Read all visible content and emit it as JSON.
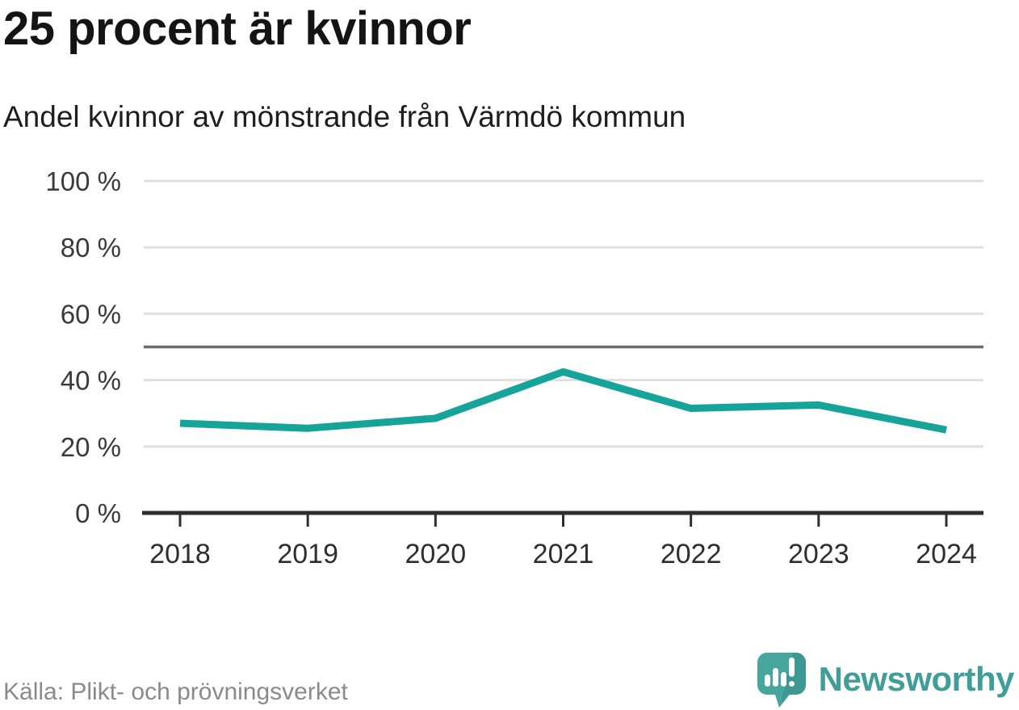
{
  "header": {
    "title": "25 procent är kvinnor",
    "subtitle": "Andel kvinnor av mönstrande från Värmdö kommun"
  },
  "footer": {
    "source": "Källa: Plikt- och prövningsverket",
    "brand": "Newsworthy",
    "logo_icon": "newsworthy-speech-bubble-bar-chart-icon"
  },
  "colors": {
    "line": "#16a399",
    "grid": "#dfdfdf",
    "axis": "#2e2e2e",
    "reference": "#6a6a72",
    "title_text": "#141414",
    "muted_text": "#8a8a8a",
    "brand": "#3f9e97",
    "brand_shade": "#358e87"
  },
  "chart_data": {
    "type": "line",
    "title": "25 procent är kvinnor",
    "subtitle": "Andel kvinnor av mönstrande från Värmdö kommun",
    "x": [
      2018,
      2019,
      2020,
      2021,
      2022,
      2023,
      2024
    ],
    "series": [
      {
        "name": "Andel kvinnor av mönstrande",
        "values": [
          27,
          25.5,
          28.5,
          42.5,
          31.5,
          32.5,
          25
        ]
      }
    ],
    "unit": "%",
    "xlabel": "",
    "ylabel": "",
    "ylim": [
      0,
      100
    ],
    "yticks": [
      0,
      20,
      40,
      60,
      80,
      100
    ],
    "ytick_format": "{v} %",
    "reference_line": 50,
    "grid": true,
    "legend": false
  }
}
